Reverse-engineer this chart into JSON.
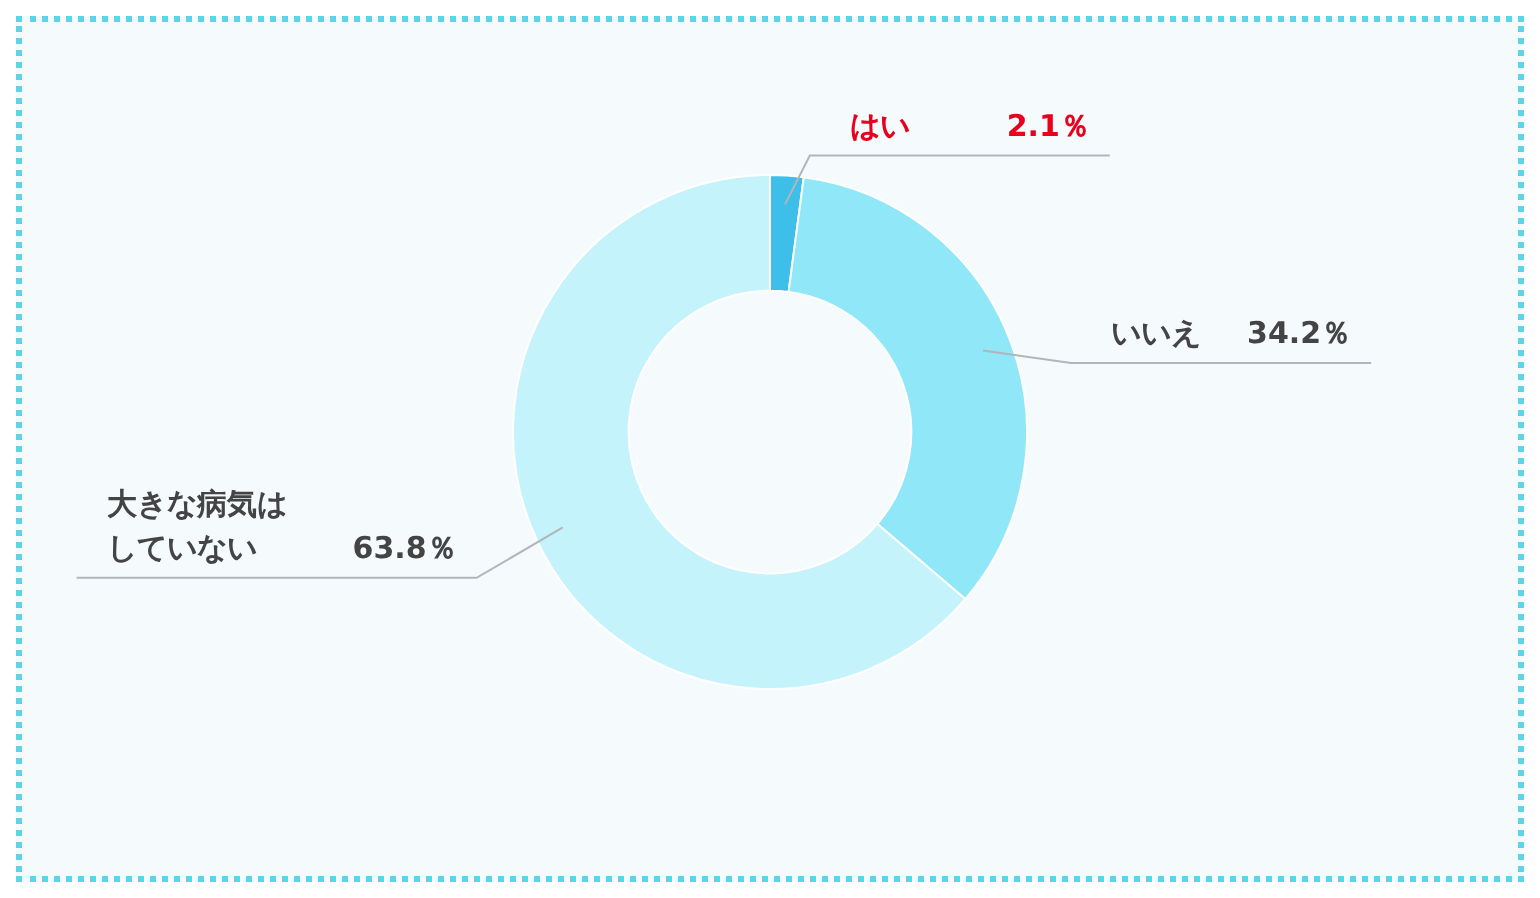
{
  "chart_data": {
    "type": "donut",
    "categories": [
      "はい",
      "いいえ",
      "大きな病気はしていない"
    ],
    "values": [
      2.1,
      34.2,
      63.8
    ],
    "value_labels": [
      "2.1％",
      "34.2％",
      "63.8％"
    ],
    "colors": [
      "#3dbfe9",
      "#8fe7f8",
      "#c5f3fb"
    ],
    "legend": false
  }
}
